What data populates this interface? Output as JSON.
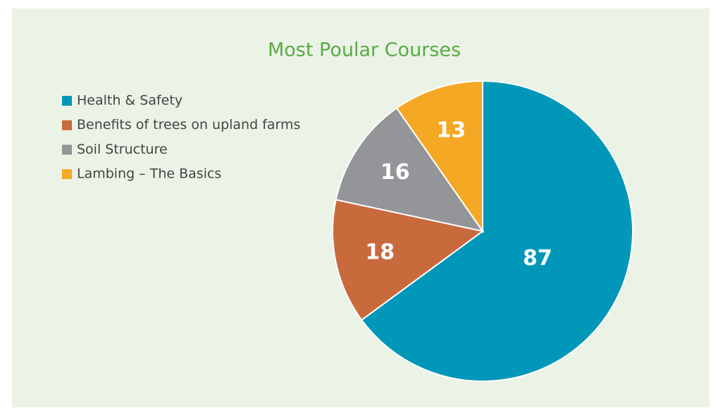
{
  "chart_data": {
    "type": "pie",
    "title": "Most Poular Courses",
    "categories": [
      "Health & Safety",
      "Benefits of trees on upland farms",
      "Soil Structure",
      "Lambing – The Basics"
    ],
    "values": [
      87,
      18,
      16,
      13
    ],
    "colors": [
      "#0097b8",
      "#c96a3d",
      "#939598",
      "#f5a823"
    ],
    "legend": "upper-left"
  }
}
